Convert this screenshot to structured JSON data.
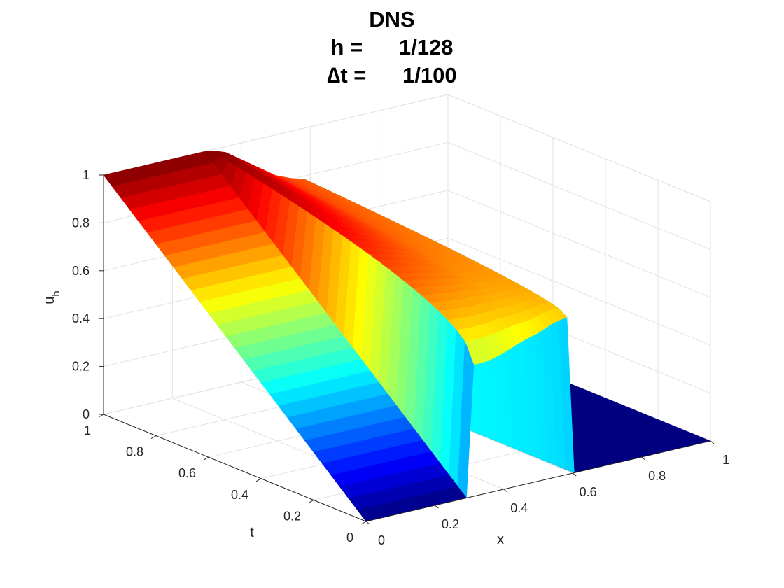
{
  "chart_data": {
    "type": "surface",
    "title_lines": [
      "DNS",
      "h =      1/128",
      "∆t =      1/100"
    ],
    "xlabel": "x",
    "ylabel": "t",
    "zlabel": "u_h",
    "zlabel_main": "u",
    "zlabel_sub": "h",
    "xlim": [
      0,
      1
    ],
    "ylim": [
      0,
      1
    ],
    "zlim": [
      0,
      1
    ],
    "x_ticks": [
      0,
      0.2,
      0.4,
      0.6,
      0.8,
      1
    ],
    "x_tick_labels": [
      "0",
      "0.2",
      "0.4",
      "0.6",
      "0.8",
      "1"
    ],
    "y_ticks": [
      0,
      0.2,
      0.4,
      0.6,
      0.8,
      1
    ],
    "y_tick_labels": [
      "0",
      "0.2",
      "0.4",
      "0.6",
      "0.8",
      "1"
    ],
    "z_ticks": [
      0,
      0.2,
      0.4,
      0.6,
      0.8,
      1
    ],
    "z_tick_labels": [
      "0",
      "0.2",
      "0.4",
      "0.6",
      "0.8",
      "1"
    ],
    "colormap": "jet",
    "grid": true,
    "view": "3-D surface, viewed from t=1, x=0 corner",
    "surface_profile": {
      "description": "u_h(x,t) on the full (x,t) grid, sampled along x; initial data is 0 outside a plateau at x in [0.3, 0.6], where the values at t = 0 lie near 0.5-0.6; the surface rises toward u = 1 at t = 1 on the left side",
      "x": [
        0,
        0.1,
        0.2,
        0.3,
        0.35,
        0.4,
        0.45,
        0.5,
        0.55,
        0.6,
        0.7,
        0.8,
        0.9,
        1
      ],
      "u_at_t0": [
        0,
        0,
        0,
        0.55,
        0.55,
        0.57,
        0.6,
        0.62,
        0.65,
        0.66,
        0,
        0,
        0,
        0
      ],
      "u_at_t1": [
        1,
        1,
        1,
        1,
        0.98,
        0.93,
        0.88,
        0.83,
        0.8,
        0.78,
        0,
        0,
        0,
        0
      ]
    }
  }
}
